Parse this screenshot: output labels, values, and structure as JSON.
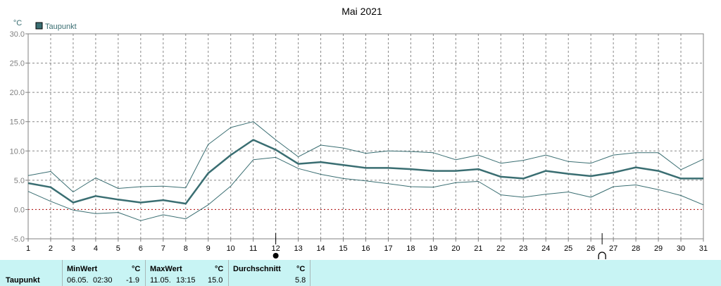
{
  "chart_data": {
    "type": "line",
    "title": "Mai 2021",
    "unit_label": "°C",
    "legend": [
      "Taupunkt"
    ],
    "legend_placement": "top-left",
    "grid": true,
    "ylim": [
      -5,
      30
    ],
    "yticks": [
      "-5.0",
      "0.0",
      "5.0",
      "10.0",
      "15.0",
      "20.0",
      "25.0",
      "30.0"
    ],
    "x": [
      1,
      2,
      3,
      4,
      5,
      6,
      7,
      8,
      9,
      10,
      11,
      12,
      13,
      14,
      15,
      16,
      17,
      18,
      19,
      20,
      21,
      22,
      23,
      24,
      25,
      26,
      27,
      28,
      29,
      30,
      31
    ],
    "series": [
      {
        "name": "Taupunkt",
        "values": [
          4.5,
          3.8,
          1.2,
          2.3,
          1.7,
          1.2,
          1.6,
          1.0,
          6.2,
          9.3,
          11.9,
          10.2,
          7.8,
          8.1,
          7.6,
          7.1,
          7.1,
          6.9,
          6.6,
          6.6,
          6.9,
          5.6,
          5.3,
          6.6,
          6.1,
          5.7,
          6.3,
          7.2,
          6.6,
          5.3,
          5.3
        ]
      },
      {
        "values": [
          5.8,
          6.5,
          3.0,
          5.4,
          3.6,
          3.9,
          4.0,
          3.7,
          11.1,
          14.0,
          15.0,
          11.9,
          9.0,
          11.0,
          10.5,
          9.6,
          10.0,
          9.9,
          9.7,
          8.5,
          9.3,
          7.9,
          8.4,
          9.3,
          8.2,
          7.9,
          9.3,
          9.7,
          9.7,
          6.8,
          8.6
        ]
      },
      {
        "values": [
          3.1,
          1.4,
          -0.1,
          -0.7,
          -0.5,
          -1.9,
          -0.9,
          -1.6,
          0.8,
          4.0,
          8.5,
          8.9,
          7.0,
          6.0,
          5.3,
          4.9,
          4.4,
          3.9,
          3.8,
          4.6,
          4.8,
          2.5,
          2.1,
          2.6,
          3.0,
          2.1,
          3.9,
          4.2,
          3.4,
          2.4,
          0.8
        ]
      }
    ],
    "moon_phases": [
      {
        "day": 12,
        "phase": "new-moon"
      },
      {
        "day": 26.5,
        "phase": "full-moon"
      }
    ]
  },
  "summary": {
    "row_label": "Taupunkt",
    "min": {
      "label": "MinWert",
      "unit": "°C",
      "date": "06.05.",
      "time": "02:30",
      "value": "-1.9"
    },
    "max": {
      "label": "MaxWert",
      "unit": "°C",
      "date": "11.05.",
      "time": "13:15",
      "value": "15.0"
    },
    "avg": {
      "label": "Durchschnitt",
      "unit": "°C",
      "value": "5.8"
    }
  },
  "colors": {
    "series": "#3a6e72",
    "axis": "#808080",
    "grid": "#888888",
    "zero_line": "#aa0000",
    "footer": "#c8f4f4"
  }
}
